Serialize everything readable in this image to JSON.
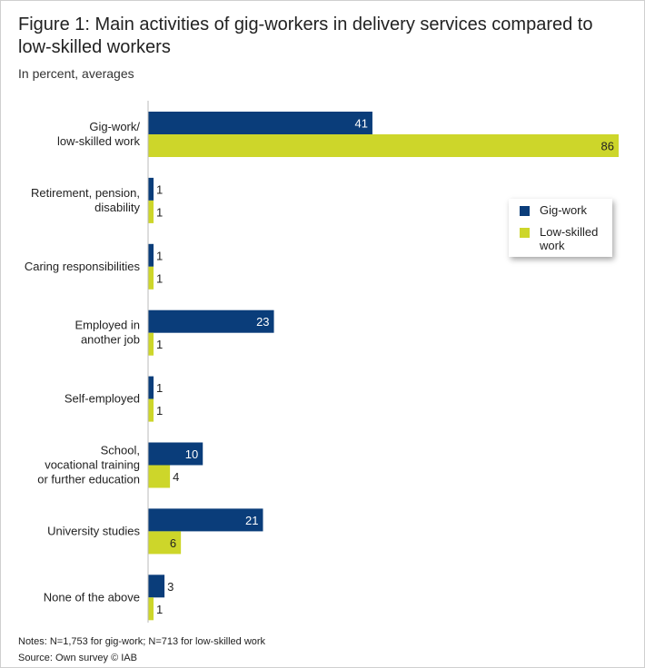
{
  "chart_data": {
    "type": "bar",
    "orientation": "horizontal",
    "title": "Figure 1: Main activities of gig-workers in delivery services compared to low-skilled workers",
    "subtitle": "In percent, averages",
    "categories": [
      [
        "Gig-work/",
        "low-skilled work"
      ],
      [
        "Retirement, pension,",
        "disability"
      ],
      [
        "Caring responsibilities"
      ],
      [
        "Employed in",
        "another job"
      ],
      [
        "Self-employed"
      ],
      [
        "School,",
        "vocational training",
        "or further education"
      ],
      [
        "University studies"
      ],
      [
        "None of the above"
      ]
    ],
    "series": [
      {
        "name": "Gig-work",
        "color": "#0a3d7a",
        "values": [
          41,
          1,
          1,
          23,
          1,
          10,
          21,
          3
        ]
      },
      {
        "name": "Low-skilled work",
        "color": "#cdd62a",
        "values": [
          86,
          1,
          1,
          1,
          1,
          4,
          6,
          1
        ]
      }
    ],
    "xlim": [
      0,
      86
    ],
    "grid": false,
    "legend": "right",
    "notes": "Notes: N=1,753 for gig-work; N=713 for low-skilled work",
    "source": "Source: Own survey  © IAB"
  }
}
